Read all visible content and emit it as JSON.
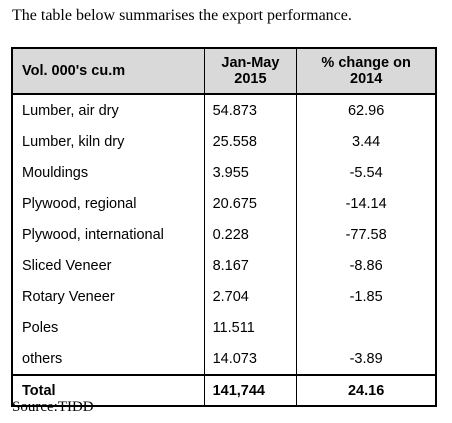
{
  "intro_text": "The table below summarises the export performance.",
  "table": {
    "headers": {
      "col1": "Vol. 000's cu.m",
      "col2_line1": "Jan-May",
      "col2_line2": "2015",
      "col3_line1": "% change on",
      "col3_line2": "2014"
    },
    "rows": [
      {
        "product": "Lumber, air dry",
        "volume": "54.873",
        "change": "62.96"
      },
      {
        "product": "Lumber, kiln dry",
        "volume": "25.558",
        "change": "3.44"
      },
      {
        "product": "Mouldings",
        "volume": "3.955",
        "change": "-5.54"
      },
      {
        "product": "Plywood, regional",
        "volume": "20.675",
        "change": "-14.14"
      },
      {
        "product": "Plywood, international",
        "volume": "0.228",
        "change": "-77.58"
      },
      {
        "product": "Sliced Veneer",
        "volume": "8.167",
        "change": "-8.86"
      },
      {
        "product": "Rotary Veneer",
        "volume": "2.704",
        "change": "-1.85"
      },
      {
        "product": "Poles",
        "volume": "11.511",
        "change": ""
      },
      {
        "product": "others",
        "volume": "14.073",
        "change": "-3.89"
      }
    ],
    "total": {
      "label": "Total",
      "volume": "141,744",
      "change": "24.16"
    }
  },
  "source_text": "Source:TIDD"
}
